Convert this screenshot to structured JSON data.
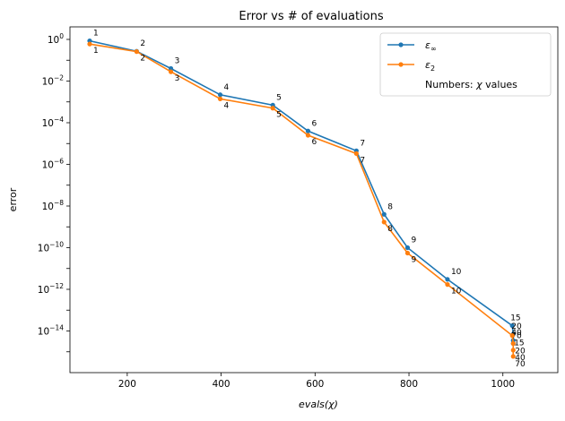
{
  "chart_data": {
    "type": "line",
    "title": "Error vs # of evaluations",
    "xlabel": "evals(χ)",
    "ylabel": "error",
    "xscale": "linear",
    "yscale": "log",
    "xlim": [
      78,
      1117
    ],
    "ylim": [
      1e-16,
      4
    ],
    "grid": false,
    "legend_position": "top-right",
    "x_ticks": [
      200,
      400,
      600,
      800,
      1000
    ],
    "y_ticks": [
      {
        "value": 1,
        "label": "10^0",
        "base": "10",
        "exp": "0"
      },
      {
        "value": 0.01,
        "label": "10^-2",
        "base": "10",
        "exp": "−2"
      },
      {
        "value": 0.0001,
        "label": "10^-4",
        "base": "10",
        "exp": "−4"
      },
      {
        "value": 1e-06,
        "label": "10^-6",
        "base": "10",
        "exp": "−6"
      },
      {
        "value": 1e-08,
        "label": "10^-8",
        "base": "10",
        "exp": "−8"
      },
      {
        "value": 1e-10,
        "label": "10^-10",
        "base": "10",
        "exp": "−10"
      },
      {
        "value": 1e-12,
        "label": "10^-12",
        "base": "10",
        "exp": "−12"
      },
      {
        "value": 1e-14,
        "label": "10^-14",
        "base": "10",
        "exp": "−14"
      }
    ],
    "series": [
      {
        "name": "ε_∞",
        "legend_main": "ε",
        "legend_sub": "∞",
        "color": "#1f77b4",
        "points": [
          {
            "x": 120,
            "y": 0.85,
            "chi": "1"
          },
          {
            "x": 220,
            "y": 0.27,
            "chi": "2"
          },
          {
            "x": 293,
            "y": 0.04,
            "chi": "3"
          },
          {
            "x": 398,
            "y": 0.0022,
            "chi": "4"
          },
          {
            "x": 510,
            "y": 0.0007,
            "chi": "5"
          },
          {
            "x": 585,
            "y": 4e-05,
            "chi": "6"
          },
          {
            "x": 688,
            "y": 4.5e-06,
            "chi": "7"
          },
          {
            "x": 747,
            "y": 4e-09,
            "chi": "8"
          },
          {
            "x": 797,
            "y": 1e-10,
            "chi": "9"
          },
          {
            "x": 882,
            "y": 3e-12,
            "chi": "10"
          },
          {
            "x": 1020,
            "y": 1.8e-14,
            "chi": "15"
          },
          {
            "x": 1022,
            "y": 7e-15,
            "chi": "20"
          },
          {
            "x": 1022,
            "y": 3.5e-15,
            "chi": "40"
          },
          {
            "x": 1022,
            "y": 2.5e-15,
            "chi": "70"
          }
        ]
      },
      {
        "name": "ε_2",
        "legend_main": "ε",
        "legend_sub": "2",
        "color": "#ff7f0e",
        "points": [
          {
            "x": 120,
            "y": 0.6,
            "chi": "1"
          },
          {
            "x": 220,
            "y": 0.26,
            "chi": "2"
          },
          {
            "x": 293,
            "y": 0.028,
            "chi": "3"
          },
          {
            "x": 398,
            "y": 0.0014,
            "chi": "4"
          },
          {
            "x": 510,
            "y": 0.0005,
            "chi": "5"
          },
          {
            "x": 585,
            "y": 2.5e-05,
            "chi": "6"
          },
          {
            "x": 688,
            "y": 3.3e-06,
            "chi": "7"
          },
          {
            "x": 747,
            "y": 1.7e-09,
            "chi": "8"
          },
          {
            "x": 797,
            "y": 5.5e-11,
            "chi": "9"
          },
          {
            "x": 882,
            "y": 1.7e-12,
            "chi": "10"
          },
          {
            "x": 1020,
            "y": 6e-15,
            "chi": "15"
          },
          {
            "x": 1022,
            "y": 2.5e-15,
            "chi": "20"
          },
          {
            "x": 1022,
            "y": 1.2e-15,
            "chi": "40"
          },
          {
            "x": 1022,
            "y": 6e-16,
            "chi": "70"
          }
        ]
      }
    ],
    "legend_note": "Numbers: χ values",
    "legend_note_prefix": "Numbers: ",
    "legend_note_symbol": "χ",
    "legend_note_suffix": " values"
  }
}
